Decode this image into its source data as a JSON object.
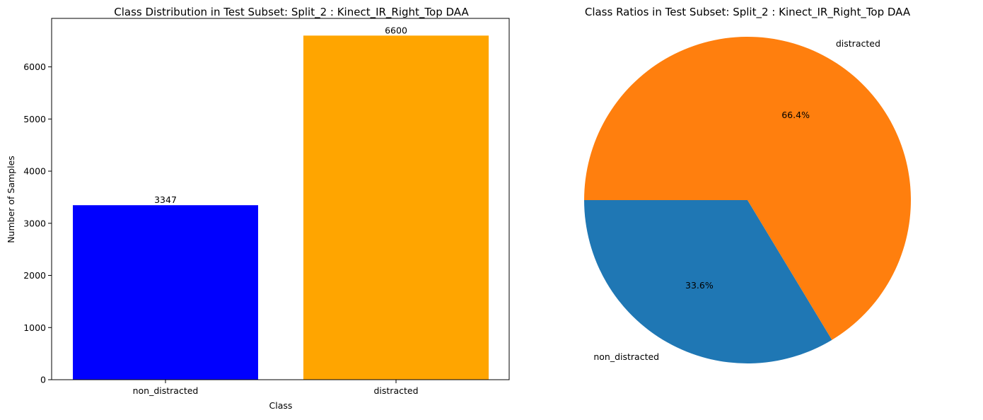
{
  "chart_data": [
    {
      "type": "bar",
      "title": "Class Distribution in Test Subset: Split_2 : Kinect_IR_Right_Top DAA",
      "xlabel": "Class",
      "ylabel": "Number of Samples",
      "categories": [
        "non_distracted",
        "distracted"
      ],
      "values": [
        3347,
        6600
      ],
      "data_labels": [
        "3347",
        "6600"
      ],
      "colors": [
        "#0000ff",
        "#ffa500"
      ],
      "ylim": [
        0,
        6930
      ],
      "yticks": [
        0,
        1000,
        2000,
        3000,
        4000,
        5000,
        6000
      ],
      "ytick_labels": [
        "0",
        "1000",
        "2000",
        "3000",
        "4000",
        "5000",
        "6000"
      ],
      "grid": false
    },
    {
      "type": "pie",
      "title": "Class Ratios in Test Subset: Split_2 : Kinect_IR_Right_Top DAA",
      "labels": [
        "non_distracted",
        "distracted"
      ],
      "values": [
        3347,
        6600
      ],
      "percent_labels": [
        "33.6%",
        "66.4%"
      ],
      "colors": [
        "#1f77b4",
        "#ff7f0e"
      ],
      "start_angle_deg": 180
    }
  ]
}
